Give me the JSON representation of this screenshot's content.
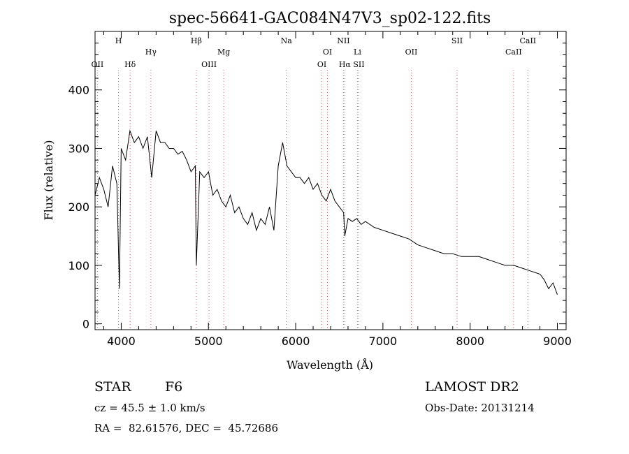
{
  "chart_data": {
    "type": "line",
    "title": "spec-56641-GAC084N47V3_sp02-122.fits",
    "xlabel": "Wavelength (Å)",
    "ylabel": "Flux (relative)",
    "xlim": [
      3700,
      9100
    ],
    "ylim": [
      -10,
      500
    ],
    "xticks": [
      4000,
      5000,
      6000,
      7000,
      8000,
      9000
    ],
    "yticks": [
      0,
      100,
      200,
      300,
      400
    ],
    "grid": false,
    "line_color": "#000000",
    "marker_line_color": "#e06060",
    "series": [
      {
        "x": [
          3700,
          3750,
          3800,
          3850,
          3900,
          3950,
          3980,
          4000,
          4050,
          4100,
          4150,
          4200,
          4250,
          4300,
          4350,
          4400,
          4450,
          4500,
          4550,
          4600,
          4650,
          4700,
          4750,
          4800,
          4850,
          4861,
          4900,
          4950,
          5000,
          5050,
          5100,
          5150,
          5200,
          5250,
          5300,
          5350,
          5400,
          5450,
          5500,
          5550,
          5600,
          5650,
          5700,
          5750,
          5800,
          5850,
          5900,
          5950,
          6000,
          6050,
          6100,
          6150,
          6200,
          6250,
          6300,
          6350,
          6400,
          6450,
          6500,
          6550,
          6563,
          6600,
          6650,
          6700,
          6750,
          6800,
          6900,
          7000,
          7100,
          7200,
          7300,
          7400,
          7500,
          7600,
          7700,
          7800,
          7900,
          8000,
          8100,
          8200,
          8300,
          8400,
          8500,
          8600,
          8700,
          8800,
          8850,
          8900,
          8950,
          9000
        ],
        "y": [
          220,
          250,
          230,
          200,
          270,
          240,
          60,
          300,
          280,
          330,
          310,
          320,
          300,
          320,
          250,
          330,
          310,
          310,
          300,
          300,
          290,
          295,
          280,
          260,
          270,
          100,
          260,
          250,
          260,
          220,
          230,
          210,
          200,
          220,
          190,
          200,
          180,
          170,
          190,
          160,
          180,
          170,
          200,
          160,
          270,
          310,
          270,
          260,
          250,
          250,
          240,
          250,
          230,
          240,
          220,
          210,
          230,
          210,
          200,
          190,
          150,
          180,
          175,
          180,
          170,
          175,
          165,
          160,
          155,
          150,
          145,
          135,
          130,
          125,
          120,
          120,
          115,
          115,
          115,
          110,
          105,
          100,
          100,
          95,
          90,
          85,
          75,
          60,
          70,
          50
        ]
      }
    ],
    "lines": [
      {
        "label": "OII",
        "x": 3727,
        "row": 2
      },
      {
        "label": "H",
        "x": 3969,
        "row": 0
      },
      {
        "label": "Hδ",
        "x": 4102,
        "row": 2
      },
      {
        "label": "Hγ",
        "x": 4340,
        "row": 1
      },
      {
        "label": "Hβ",
        "x": 4861,
        "row": 0
      },
      {
        "label": "OIII",
        "x": 5007,
        "row": 2
      },
      {
        "label": "Mg",
        "x": 5175,
        "row": 1
      },
      {
        "label": "Na",
        "x": 5893,
        "row": 0
      },
      {
        "label": "OI",
        "x": 6300,
        "row": 2
      },
      {
        "label": "OI",
        "x": 6364,
        "row": 1
      },
      {
        "label": "NII",
        "x": 6548,
        "row": 0
      },
      {
        "label": "Hα",
        "x": 6563,
        "row": 2
      },
      {
        "label": "Li",
        "x": 6708,
        "row": 1
      },
      {
        "label": "SII",
        "x": 6724,
        "row": 2
      },
      {
        "label": "OII",
        "x": 7325,
        "row": 1
      },
      {
        "label": "SII",
        "x": 7850,
        "row": 0
      },
      {
        "label": "CaII",
        "x": 8498,
        "row": 1
      },
      {
        "label": "CaII",
        "x": 8662,
        "row": 0
      }
    ]
  },
  "info": {
    "object_class": "STAR",
    "subclass": "F6",
    "survey": "LAMOST DR2",
    "redshift": "cz = 45.5 ± 1.0 km/s",
    "obs_date": "Obs-Date: 20131214",
    "coords": "RA =  82.61576, DEC =  45.72686"
  }
}
